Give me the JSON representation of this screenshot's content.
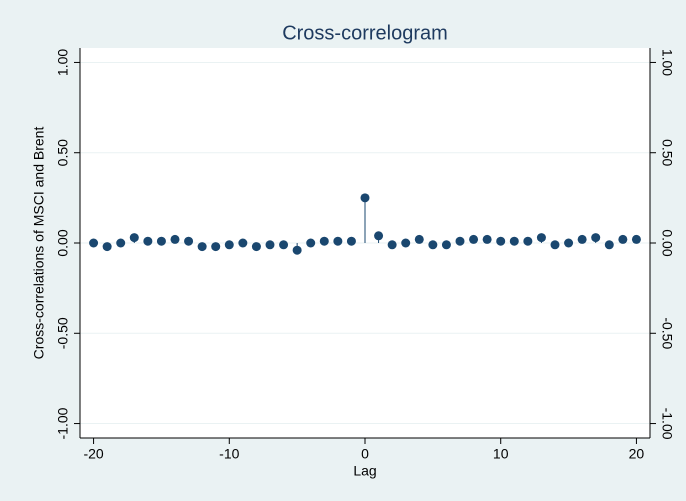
{
  "chart_data": {
    "type": "stem",
    "title": "Cross-correlogram",
    "x_label": "Lag",
    "y_label": "Cross-correlations of MSCI and Brent",
    "x": [
      -20,
      -19,
      -18,
      -17,
      -16,
      -15,
      -14,
      -13,
      -12,
      -11,
      -10,
      -9,
      -8,
      -7,
      -6,
      -5,
      -4,
      -3,
      -2,
      -1,
      0,
      1,
      2,
      3,
      4,
      5,
      6,
      7,
      8,
      9,
      10,
      11,
      12,
      13,
      14,
      15,
      16,
      17,
      18,
      19,
      20
    ],
    "values": [
      0.0,
      -0.02,
      0.0,
      0.03,
      0.01,
      0.01,
      0.02,
      0.01,
      -0.02,
      -0.02,
      -0.01,
      0.0,
      -0.02,
      -0.01,
      -0.01,
      -0.04,
      0.0,
      0.01,
      0.01,
      0.01,
      0.25,
      0.04,
      -0.01,
      0.0,
      0.02,
      -0.01,
      -0.01,
      0.01,
      0.02,
      0.02,
      0.01,
      0.01,
      0.01,
      0.03,
      -0.01,
      0.0,
      0.02,
      0.03,
      -0.01,
      0.02,
      0.02
    ],
    "color": "#1a476f",
    "xlim": [
      -21,
      21
    ],
    "xticks": [
      -20,
      -10,
      0,
      10,
      20
    ],
    "ylim": [
      -1.08,
      1.08
    ],
    "yticks": [
      {
        "value": -1,
        "label": "-1.00"
      },
      {
        "value": -0.5,
        "label": "-0.50"
      },
      {
        "value": 0,
        "label": "0.00"
      },
      {
        "value": 0.5,
        "label": "0.50"
      },
      {
        "value": 1,
        "label": "1.00"
      }
    ],
    "grid": true
  }
}
